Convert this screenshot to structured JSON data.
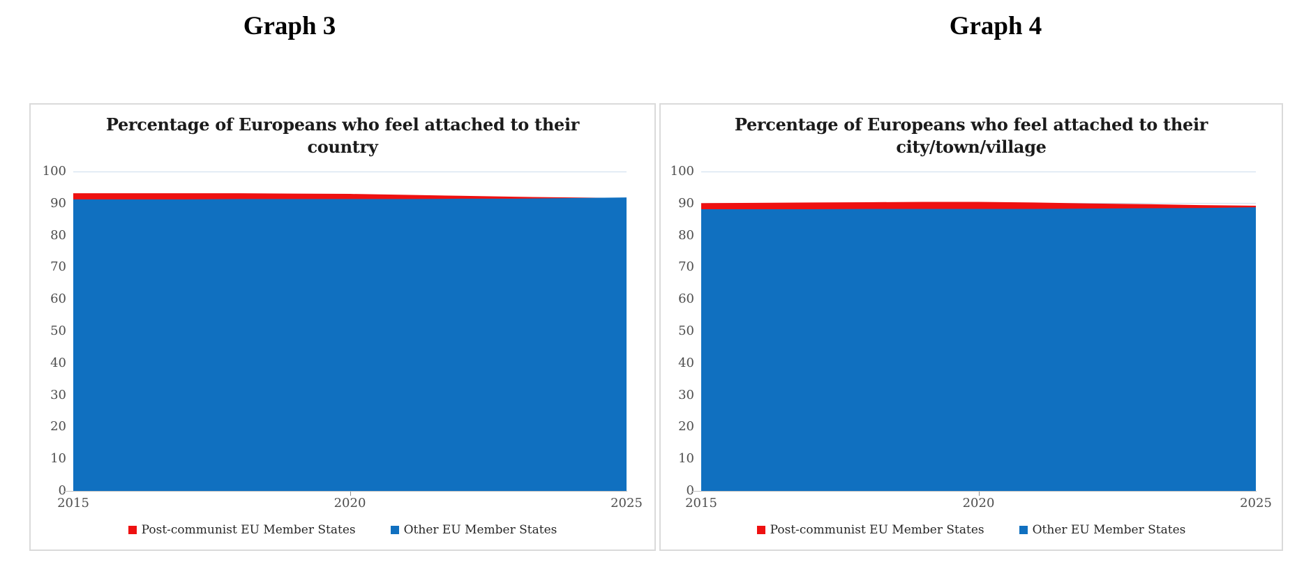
{
  "page": {
    "headers": [
      {
        "label": "Graph 3"
      },
      {
        "label": "Graph 4"
      }
    ]
  },
  "colors": {
    "post_communist_red": "#ee1111",
    "other_blue": "#1070c0",
    "gridline_blue": "#ccdcec",
    "axis_line_gray": "#bfbfbf",
    "tick_label_gray": "#4d4d4d",
    "card_border_gray": "#dadada"
  },
  "chart_data": [
    {
      "type": "area",
      "title": "Percentage of Europeans who feel attached to their country",
      "title_lines": [
        "Percentage of Europeans who feel attached to their",
        "country"
      ],
      "x": [
        2015,
        2016,
        2017,
        2018,
        2019,
        2020,
        2021,
        2022,
        2023,
        2024,
        2025
      ],
      "xlim": [
        2015,
        2025
      ],
      "ylim": [
        0,
        100
      ],
      "x_tick_labels": [
        "2015",
        "2020",
        "2025"
      ],
      "y_tick_labels": [
        "100",
        "90",
        "80",
        "70",
        "60",
        "50",
        "40",
        "30",
        "20",
        "10",
        "0"
      ],
      "grid": "horizontal gridlines behind areas",
      "legend_position": "bottom",
      "series": [
        {
          "name": "Post-communist EU Member States",
          "color": "#ee1111",
          "values": [
            93.2,
            93.2,
            93.2,
            93.2,
            93.1,
            93.0,
            92.7,
            92.4,
            92.1,
            91.9,
            91.7
          ]
        },
        {
          "name": "Other EU Member States",
          "color": "#1070c0",
          "values": [
            91.3,
            91.3,
            91.3,
            91.4,
            91.4,
            91.4,
            91.4,
            91.5,
            91.5,
            91.7,
            91.9
          ]
        }
      ]
    },
    {
      "type": "area",
      "title": "Percentage of Europeans who feel attached to their city/town/village",
      "title_lines": [
        "Percentage of Europeans who feel attached to their",
        "city/town/village"
      ],
      "x": [
        2015,
        2016,
        2017,
        2018,
        2019,
        2020,
        2021,
        2022,
        2023,
        2024,
        2025
      ],
      "xlim": [
        2015,
        2025
      ],
      "ylim": [
        0,
        100
      ],
      "x_tick_labels": [
        "2015",
        "2020",
        "2025"
      ],
      "y_tick_labels": [
        "100",
        "90",
        "80",
        "70",
        "60",
        "50",
        "40",
        "30",
        "20",
        "10",
        "0"
      ],
      "grid": "horizontal gridlines behind areas",
      "legend_position": "bottom",
      "series": [
        {
          "name": "Post-communist EU Member States",
          "color": "#ee1111",
          "values": [
            90.1,
            90.2,
            90.3,
            90.4,
            90.5,
            90.5,
            90.3,
            90.0,
            89.8,
            89.5,
            89.3
          ]
        },
        {
          "name": "Other EU Member States",
          "color": "#1070c0",
          "values": [
            88.2,
            88.2,
            88.2,
            88.3,
            88.3,
            88.3,
            88.3,
            88.4,
            88.5,
            88.6,
            88.8
          ]
        }
      ]
    }
  ]
}
